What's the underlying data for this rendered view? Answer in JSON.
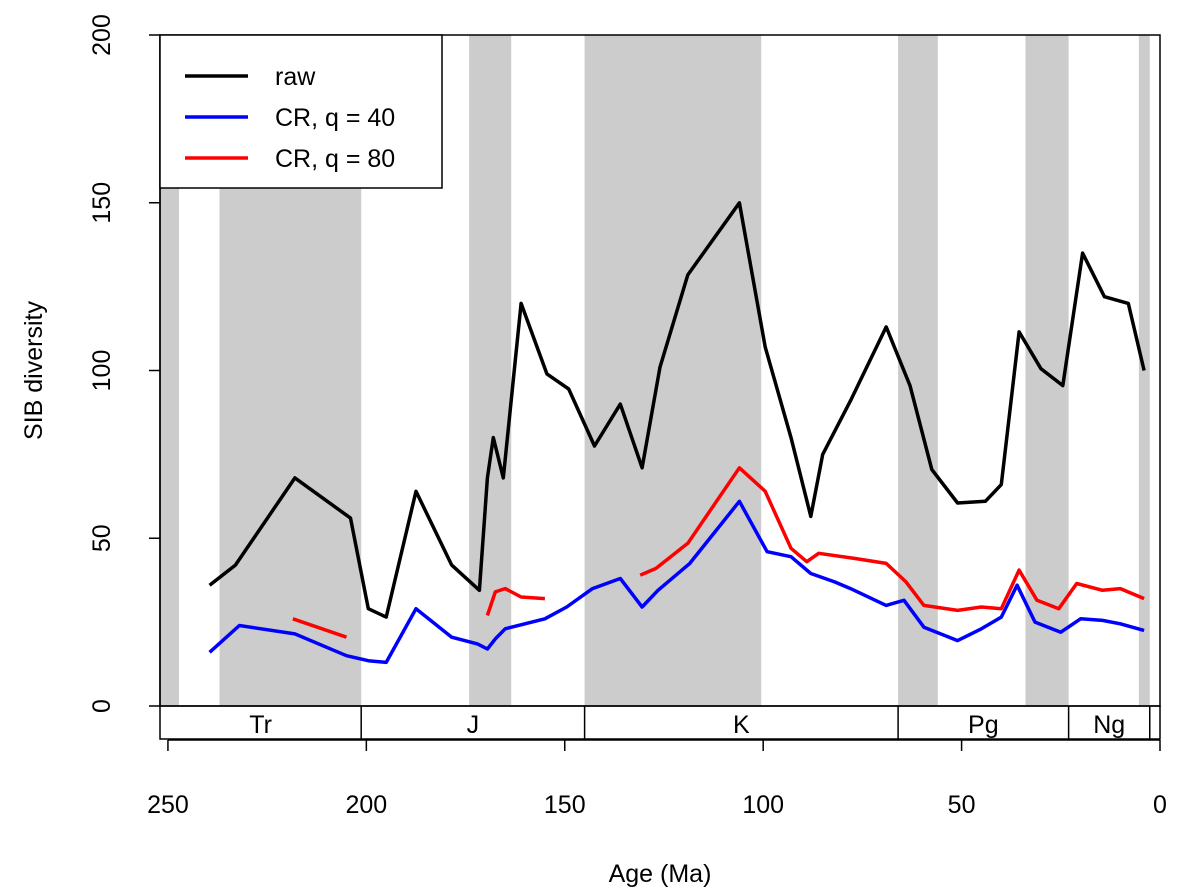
{
  "chart_data": {
    "type": "line",
    "xlabel": "Age (Ma)",
    "ylabel": "SIB diversity",
    "xlim": [
      252,
      0
    ],
    "ylim": [
      0,
      200
    ],
    "x_ticks": [
      250,
      200,
      150,
      100,
      50,
      0
    ],
    "y_ticks": [
      0,
      50,
      100,
      150,
      200
    ],
    "grid": false,
    "legend_position": "top-left",
    "background_bands": [
      [
        252,
        247.2
      ],
      [
        237,
        201.3
      ],
      [
        174.1,
        163.5
      ],
      [
        145,
        100.5
      ],
      [
        66,
        56
      ],
      [
        33.9,
        23.03
      ],
      [
        5.33,
        2.58
      ]
    ],
    "band_color": "#cccccc",
    "periods": [
      {
        "label": "Tr",
        "start": 252,
        "end": 201.3
      },
      {
        "label": "J",
        "start": 201.3,
        "end": 145
      },
      {
        "label": "K",
        "start": 145,
        "end": 66
      },
      {
        "label": "Pg",
        "start": 66,
        "end": 23.03
      },
      {
        "label": "Ng",
        "start": 23.03,
        "end": 2.58
      }
    ],
    "series": [
      {
        "name": "raw",
        "color": "#000000",
        "segments": [
          [
            [
              239.5,
              36
            ],
            [
              233,
              42
            ],
            [
              218,
              68
            ],
            [
              204,
              56
            ],
            [
              199.5,
              29
            ],
            [
              195,
              26.5
            ],
            [
              187.5,
              64
            ],
            [
              178.5,
              42
            ],
            [
              171.5,
              34.5
            ],
            [
              169.5,
              68
            ],
            [
              168,
              80
            ],
            [
              165.5,
              68
            ],
            [
              161,
              120
            ],
            [
              154.5,
              99
            ],
            [
              149,
              94.5
            ],
            [
              142.5,
              77.5
            ],
            [
              136,
              90
            ],
            [
              130.5,
              71
            ],
            [
              126,
              101
            ],
            [
              119,
              128.5
            ],
            [
              106,
              150
            ],
            [
              99.5,
              107
            ],
            [
              93,
              80
            ],
            [
              88,
              56.5
            ],
            [
              85,
              75
            ],
            [
              78,
              91
            ],
            [
              69,
              113
            ],
            [
              63,
              95.5
            ],
            [
              57.5,
              70.5
            ],
            [
              51,
              60.5
            ],
            [
              44,
              61
            ],
            [
              40,
              66
            ],
            [
              35.5,
              111.5
            ],
            [
              30,
              100.5
            ],
            [
              24.5,
              95.5
            ],
            [
              19.5,
              135
            ],
            [
              14,
              122
            ],
            [
              8,
              120
            ],
            [
              4,
              100
            ]
          ]
        ]
      },
      {
        "name": "CR, q = 40",
        "color": "#0000ff",
        "segments": [
          [
            [
              239.5,
              16
            ],
            [
              232,
              24
            ],
            [
              218,
              21.5
            ],
            [
              205,
              15
            ],
            [
              199.5,
              13.5
            ],
            [
              195,
              13
            ],
            [
              187.5,
              29
            ],
            [
              178.5,
              20.5
            ],
            [
              172,
              18.5
            ],
            [
              169.5,
              17
            ],
            [
              167.5,
              20
            ],
            [
              165,
              23
            ],
            [
              155,
              26
            ],
            [
              149.5,
              29.5
            ],
            [
              143,
              35
            ],
            [
              136,
              38
            ],
            [
              130.5,
              29.5
            ],
            [
              126.5,
              34.5
            ],
            [
              118.5,
              42.5
            ],
            [
              106,
              61
            ],
            [
              99,
              46
            ],
            [
              93,
              44.5
            ],
            [
              88,
              39.5
            ],
            [
              82,
              37
            ],
            [
              78,
              35
            ],
            [
              69,
              30
            ],
            [
              64.5,
              31.5
            ],
            [
              59.5,
              23.5
            ],
            [
              51,
              19.5
            ],
            [
              45,
              23
            ],
            [
              40,
              26.5
            ],
            [
              36,
              36
            ],
            [
              31.5,
              25
            ],
            [
              25,
              22
            ],
            [
              20,
              26
            ],
            [
              14.5,
              25.5
            ],
            [
              10,
              24.5
            ],
            [
              4,
              22.5
            ]
          ]
        ]
      },
      {
        "name": "CR, q = 80",
        "color": "#ff0000",
        "segments": [
          [
            [
              218.5,
              26
            ],
            [
              205,
              20.5
            ]
          ],
          [
            [
              169.5,
              27
            ],
            [
              167.5,
              34
            ],
            [
              165,
              35
            ],
            [
              161,
              32.5
            ],
            [
              155,
              32
            ]
          ],
          [
            [
              131,
              39
            ],
            [
              127,
              41
            ],
            [
              119,
              48.5
            ],
            [
              106,
              71
            ],
            [
              99.5,
              64
            ],
            [
              93,
              47
            ],
            [
              89,
              43
            ],
            [
              86,
              45.5
            ],
            [
              77,
              44
            ],
            [
              69,
              42.5
            ],
            [
              64,
              37
            ],
            [
              59.5,
              30
            ],
            [
              51,
              28.5
            ],
            [
              45,
              29.5
            ],
            [
              40,
              29
            ],
            [
              35.5,
              40.5
            ],
            [
              31,
              31.5
            ],
            [
              25.5,
              29
            ],
            [
              21,
              36.5
            ],
            [
              14.5,
              34.5
            ],
            [
              10,
              35
            ],
            [
              4,
              32
            ]
          ]
        ]
      }
    ]
  }
}
